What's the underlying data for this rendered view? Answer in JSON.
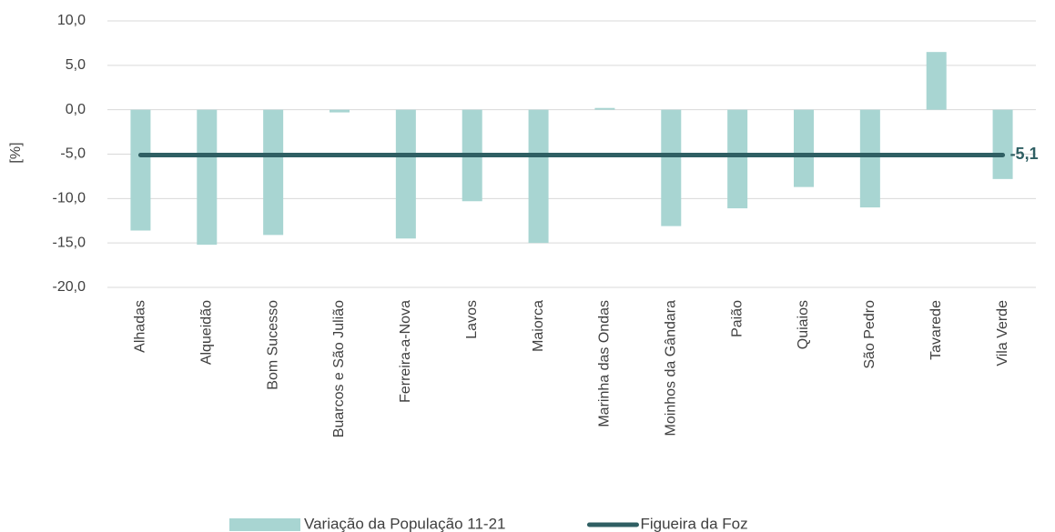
{
  "chart_data": {
    "type": "bar",
    "y_label": "[%]",
    "categories": [
      "Alhadas",
      "Alqueidão",
      "Bom Sucesso",
      "Buarcos e São Julião",
      "Ferreira-a-Nova",
      "Lavos",
      "Maiorca",
      "Marinha das Ondas",
      "Moinhos da Gândara",
      "Paião",
      "Quiaios",
      "São Pedro",
      "Tavarede",
      "Vila Verde"
    ],
    "series": [
      {
        "name": "Variação da População 11-21",
        "type": "bar",
        "color": "#a8d5d2",
        "values": [
          -13.6,
          -15.2,
          -14.1,
          -0.3,
          -14.5,
          -10.3,
          -15.0,
          0.2,
          -13.1,
          -11.1,
          -8.7,
          -11.0,
          6.5,
          -7.8
        ]
      },
      {
        "name": "Figueira da Foz",
        "type": "line",
        "color": "#2f5f63",
        "values": [
          -5.1,
          -5.1,
          -5.1,
          -5.1,
          -5.1,
          -5.1,
          -5.1,
          -5.1,
          -5.1,
          -5.1,
          -5.1,
          -5.1,
          -5.1,
          -5.1
        ],
        "value_labels": [
          null,
          null,
          null,
          null,
          null,
          null,
          null,
          null,
          null,
          null,
          null,
          null,
          null,
          "-5,1"
        ]
      }
    ],
    "ylim": [
      -20,
      10
    ],
    "yticks": [
      {
        "value": -20,
        "label": "-20,0"
      },
      {
        "value": -15,
        "label": "-15,0"
      },
      {
        "value": -10,
        "label": "-10,0"
      },
      {
        "value": -5,
        "label": "-5,0"
      },
      {
        "value": 0,
        "label": "0,0"
      },
      {
        "value": 5,
        "label": "5,0"
      },
      {
        "value": 10,
        "label": "10,0"
      }
    ],
    "grid": true,
    "legend": "bottom"
  }
}
